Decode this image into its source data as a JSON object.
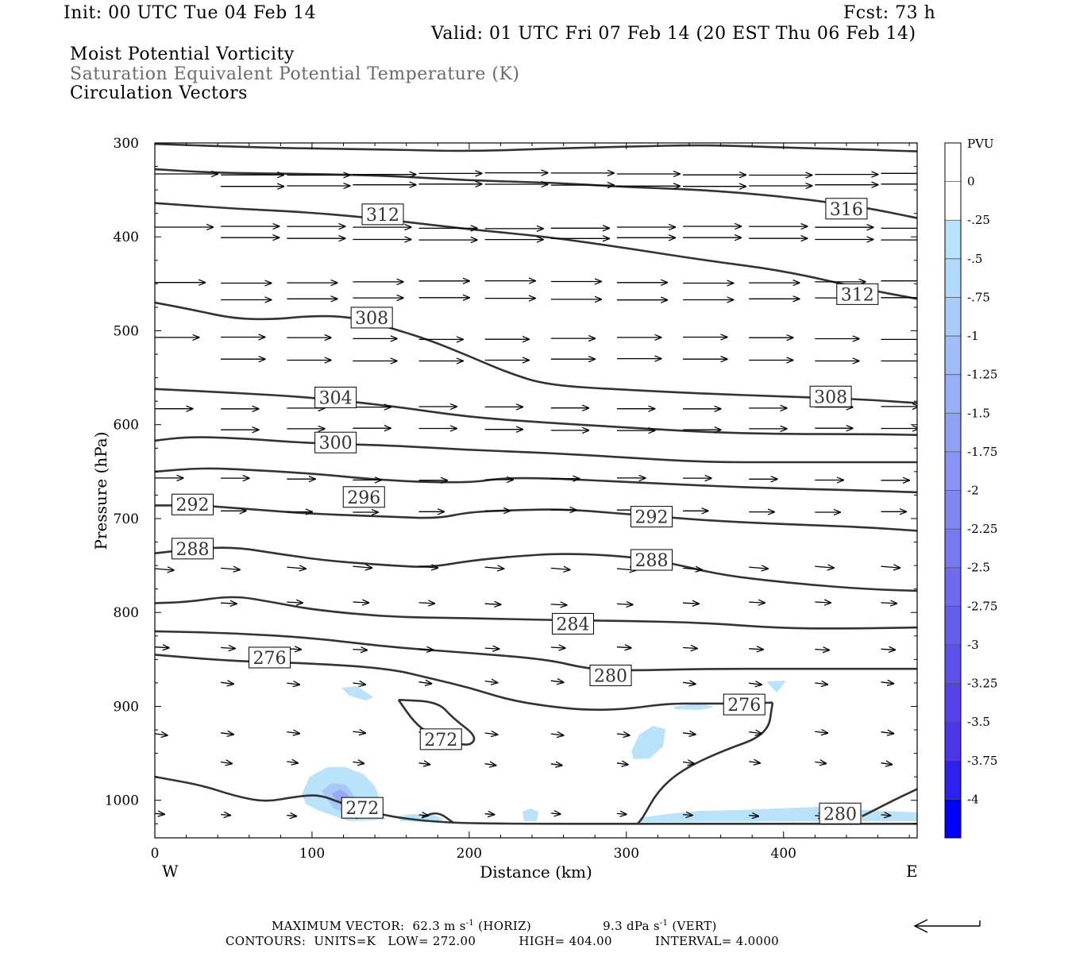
{
  "header": {
    "init": "Init: 00 UTC Tue 04 Feb 14",
    "fcst": "Fcst:   73 h",
    "valid": "Valid: 01 UTC Fri 07 Feb 14 (20 EST Thu 06 Feb 14)",
    "field1": "Moist Potential Vorticity",
    "field2": "Saturation Equivalent Potential Temperature (K)",
    "field3": "Circulation Vectors"
  },
  "footer": {
    "max_vector_label": "MAXIMUM VECTOR:",
    "max_vector_horiz": "62.3 m s",
    "horiz_exp": "-1",
    "horiz_tag": "(HORIZ)",
    "max_vector_vert": "9.3 dPa s",
    "vert_exp": "-1",
    "vert_tag": "(VERT)",
    "contours_label": "CONTOURS:",
    "units": "UNITS=K",
    "low": "LOW=   272.00",
    "high": "HIGH=   404.00",
    "interval": "INTERVAL=     4.0000"
  },
  "colors": {
    "contour": "#333333",
    "vector": "#000000",
    "shade_light": "#b9e3fb",
    "shade_mid": "#a8c8f8",
    "shade_dark": "#7f8ff0"
  },
  "chart_data": {
    "type": "contour",
    "xlabel": "Distance (km)",
    "ylabel": "Pressure (hPa)",
    "xlim": [
      0,
      485
    ],
    "ylim": [
      1040,
      300
    ],
    "x_ticks": [
      0,
      100,
      200,
      300,
      400
    ],
    "y_ticks": [
      300,
      400,
      500,
      600,
      700,
      800,
      900,
      1000
    ],
    "x_left_label": "W",
    "x_right_label": "E",
    "contour_labels": [
      {
        "text": "316",
        "x": 440,
        "y": 370
      },
      {
        "text": "312",
        "x": 145,
        "y": 376
      },
      {
        "text": "312",
        "x": 447,
        "y": 461
      },
      {
        "text": "308",
        "x": 138,
        "y": 486
      },
      {
        "text": "308",
        "x": 430,
        "y": 570
      },
      {
        "text": "304",
        "x": 115,
        "y": 571
      },
      {
        "text": "300",
        "x": 115,
        "y": 619
      },
      {
        "text": "296",
        "x": 133,
        "y": 677
      },
      {
        "text": "292",
        "x": 24,
        "y": 685
      },
      {
        "text": "292",
        "x": 316,
        "y": 698
      },
      {
        "text": "288",
        "x": 24,
        "y": 732
      },
      {
        "text": "288",
        "x": 316,
        "y": 744
      },
      {
        "text": "284",
        "x": 266,
        "y": 812
      },
      {
        "text": "280",
        "x": 290,
        "y": 867
      },
      {
        "text": "280",
        "x": 436,
        "y": 1014
      },
      {
        "text": "276",
        "x": 73,
        "y": 848
      },
      {
        "text": "276",
        "x": 375,
        "y": 898
      },
      {
        "text": "272",
        "x": 182,
        "y": 935
      },
      {
        "text": "272",
        "x": 132,
        "y": 1008
      }
    ],
    "contours": [
      {
        "level": "upper-top",
        "points": [
          [
            0,
            301
          ],
          [
            50,
            304
          ],
          [
            100,
            306
          ],
          [
            150,
            307
          ],
          [
            200,
            309
          ],
          [
            250,
            306
          ],
          [
            300,
            304
          ],
          [
            350,
            302
          ],
          [
            400,
            305
          ],
          [
            450,
            307
          ],
          [
            485,
            309
          ]
        ]
      },
      {
        "level": "316",
        "points": [
          [
            0,
            328
          ],
          [
            40,
            332
          ],
          [
            100,
            333
          ],
          [
            150,
            335
          ],
          [
            200,
            340
          ],
          [
            250,
            342
          ],
          [
            300,
            347
          ],
          [
            350,
            350
          ],
          [
            400,
            357
          ],
          [
            450,
            368
          ],
          [
            485,
            380
          ]
        ]
      },
      {
        "level": "312",
        "points": [
          [
            0,
            364
          ],
          [
            50,
            370
          ],
          [
            100,
            374
          ],
          [
            150,
            382
          ],
          [
            200,
            392
          ],
          [
            250,
            400
          ],
          [
            300,
            412
          ],
          [
            350,
            425
          ],
          [
            400,
            436
          ],
          [
            450,
            455
          ],
          [
            485,
            466
          ]
        ]
      },
      {
        "level": "308",
        "points": [
          [
            0,
            470
          ],
          [
            25,
            478
          ],
          [
            50,
            487
          ],
          [
            75,
            488
          ],
          [
            100,
            484
          ],
          [
            125,
            485
          ],
          [
            150,
            497
          ],
          [
            175,
            510
          ],
          [
            200,
            527
          ],
          [
            225,
            545
          ],
          [
            250,
            558
          ],
          [
            300,
            563
          ],
          [
            350,
            567
          ],
          [
            400,
            570
          ],
          [
            450,
            573
          ],
          [
            485,
            577
          ]
        ]
      },
      {
        "level": "304",
        "points": [
          [
            0,
            562
          ],
          [
            50,
            566
          ],
          [
            100,
            571
          ],
          [
            150,
            580
          ],
          [
            200,
            592
          ],
          [
            250,
            598
          ],
          [
            300,
            603
          ],
          [
            350,
            608
          ],
          [
            400,
            610
          ],
          [
            450,
            610
          ],
          [
            485,
            611
          ]
        ]
      },
      {
        "level": "300",
        "points": [
          [
            0,
            617
          ],
          [
            20,
            613
          ],
          [
            50,
            614
          ],
          [
            100,
            620
          ],
          [
            150,
            622
          ],
          [
            200,
            627
          ],
          [
            250,
            630
          ],
          [
            300,
            635
          ],
          [
            350,
            640
          ],
          [
            400,
            640
          ],
          [
            450,
            640
          ],
          [
            485,
            640
          ]
        ]
      },
      {
        "level": "296",
        "points": [
          [
            0,
            650
          ],
          [
            30,
            646
          ],
          [
            60,
            648
          ],
          [
            100,
            652
          ],
          [
            150,
            660
          ],
          [
            200,
            662
          ],
          [
            220,
            657
          ],
          [
            250,
            657
          ],
          [
            300,
            661
          ],
          [
            350,
            665
          ],
          [
            400,
            668
          ],
          [
            450,
            670
          ],
          [
            485,
            672
          ]
        ]
      },
      {
        "level": "292",
        "points": [
          [
            0,
            686
          ],
          [
            30,
            686
          ],
          [
            60,
            690
          ],
          [
            100,
            695
          ],
          [
            150,
            698
          ],
          [
            180,
            700
          ],
          [
            200,
            693
          ],
          [
            230,
            691
          ],
          [
            260,
            690
          ],
          [
            300,
            695
          ],
          [
            350,
            702
          ],
          [
            400,
            706
          ],
          [
            450,
            709
          ],
          [
            485,
            713
          ]
        ]
      },
      {
        "level": "288",
        "points": [
          [
            0,
            737
          ],
          [
            20,
            733
          ],
          [
            50,
            730
          ],
          [
            80,
            738
          ],
          [
            110,
            745
          ],
          [
            150,
            750
          ],
          [
            175,
            752
          ],
          [
            200,
            745
          ],
          [
            230,
            740
          ],
          [
            260,
            737
          ],
          [
            300,
            740
          ],
          [
            330,
            748
          ],
          [
            360,
            760
          ],
          [
            400,
            768
          ],
          [
            450,
            775
          ],
          [
            485,
            777
          ]
        ]
      },
      {
        "level": "284",
        "points": [
          [
            0,
            790
          ],
          [
            20,
            789
          ],
          [
            50,
            782
          ],
          [
            75,
            789
          ],
          [
            100,
            797
          ],
          [
            150,
            805
          ],
          [
            200,
            806
          ],
          [
            250,
            808
          ],
          [
            300,
            809
          ],
          [
            350,
            811
          ],
          [
            400,
            817
          ],
          [
            450,
            817
          ],
          [
            485,
            816
          ]
        ]
      },
      {
        "level": "280",
        "points": [
          [
            0,
            820
          ],
          [
            50,
            822
          ],
          [
            100,
            827
          ],
          [
            150,
            837
          ],
          [
            200,
            843
          ],
          [
            250,
            850
          ],
          [
            275,
            860
          ],
          [
            300,
            862
          ],
          [
            350,
            860
          ],
          [
            400,
            860
          ],
          [
            450,
            860
          ],
          [
            485,
            860
          ]
        ]
      },
      {
        "level": "276-main",
        "points": [
          [
            0,
            845
          ],
          [
            50,
            852
          ],
          [
            100,
            854
          ],
          [
            150,
            860
          ],
          [
            175,
            870
          ],
          [
            200,
            880
          ],
          [
            225,
            893
          ],
          [
            250,
            900
          ],
          [
            275,
            904
          ],
          [
            300,
            903
          ],
          [
            325,
            897
          ],
          [
            350,
            897
          ],
          [
            375,
            897
          ],
          [
            393,
            896
          ]
        ]
      },
      {
        "level": "276-return",
        "points": [
          [
            393,
            896
          ],
          [
            390,
            930
          ],
          [
            360,
            948
          ],
          [
            335,
            968
          ],
          [
            320,
            990
          ],
          [
            310,
            1020
          ],
          [
            307,
            1025
          ]
        ]
      },
      {
        "level": "272-closed",
        "points": [
          [
            155,
            893
          ],
          [
            180,
            895
          ],
          [
            190,
            913
          ],
          [
            205,
            932
          ],
          [
            200,
            943
          ],
          [
            185,
            935
          ],
          [
            175,
            930
          ],
          [
            165,
            917
          ],
          [
            155,
            893
          ]
        ]
      },
      {
        "level": "272-bottom",
        "points": [
          [
            0,
            975
          ],
          [
            30,
            984
          ],
          [
            50,
            995
          ],
          [
            70,
            1002
          ],
          [
            90,
            996
          ],
          [
            105,
            994
          ],
          [
            120,
            1004
          ],
          [
            150,
            1018
          ],
          [
            185,
            1024
          ],
          [
            230,
            1025
          ],
          [
            300,
            1025
          ],
          [
            485,
            1025
          ]
        ]
      },
      {
        "level": "280-bottom",
        "points": [
          [
            450,
            1017
          ],
          [
            470,
            1000
          ],
          [
            485,
            988
          ]
        ]
      },
      {
        "level": "sfc-short",
        "points": [
          [
            170,
            1018
          ],
          [
            180,
            1012
          ],
          [
            190,
            1024
          ]
        ]
      }
    ],
    "vector_rows": [
      {
        "p": 333,
        "dx": 40,
        "dy": 0
      },
      {
        "p": 345,
        "dx": 40,
        "dy": 0
      },
      {
        "p": 390,
        "dx": 37,
        "dy": 0
      },
      {
        "p": 402,
        "dx": 37,
        "dy": 0
      },
      {
        "p": 448,
        "dx": 32,
        "dy": 0
      },
      {
        "p": 466,
        "dx": 32,
        "dy": 0
      },
      {
        "p": 508,
        "dx": 28,
        "dy": 0
      },
      {
        "p": 531,
        "dx": 28,
        "dy": 0
      },
      {
        "p": 582,
        "dx": 24,
        "dy": 0
      },
      {
        "p": 605,
        "dx": 24,
        "dy": 0
      },
      {
        "p": 658,
        "dx": 18,
        "dy": 0
      },
      {
        "p": 692,
        "dx": 16,
        "dy": 0
      },
      {
        "p": 752,
        "dx": 12,
        "dy": 2
      },
      {
        "p": 790,
        "dx": 10,
        "dy": 1
      },
      {
        "p": 838,
        "dx": 9,
        "dy": 1
      },
      {
        "p": 874,
        "dx": 8,
        "dy": 2
      },
      {
        "p": 928,
        "dx": 8,
        "dy": 2
      },
      {
        "p": 960,
        "dx": 7,
        "dy": 2
      },
      {
        "p": 1015,
        "dx": 6,
        "dy": 1
      }
    ],
    "colorbar": {
      "unit": "PVU",
      "labels": [
        "0",
        "-.25",
        "-.5",
        "-.75",
        "-1",
        "-1.25",
        "-1.5",
        "-1.75",
        "-2",
        "-2.25",
        "-2.5",
        "-2.75",
        "-3",
        "-3.25",
        "-3.5",
        "-3.75",
        "-4"
      ],
      "colors": [
        "#ffffff",
        "#ffffff",
        "#b9e3fb",
        "#b1d9fa",
        "#a8cbf8",
        "#a0bdf7",
        "#98b0f6",
        "#8fa2f4",
        "#8794f3",
        "#7f87f1",
        "#7779f0",
        "#6e6bee",
        "#665ded",
        "#5e50eb",
        "#5542ea",
        "#4d35e8",
        "#2d1ff0",
        "#0000ff"
      ]
    }
  }
}
